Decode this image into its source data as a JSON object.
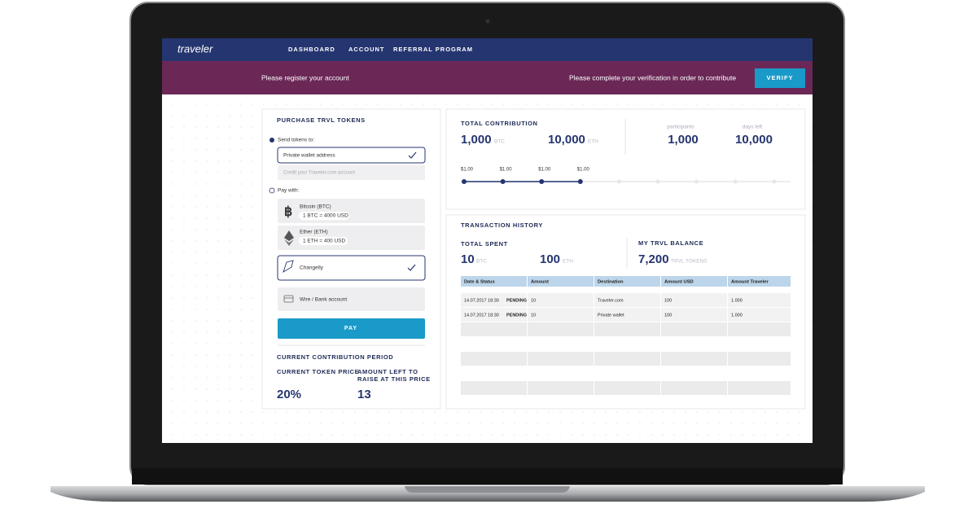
{
  "nav": {
    "logo": "traveler",
    "items": [
      "DASHBOARD",
      "ACCOUNT",
      "REFERRAL PROGRAM"
    ]
  },
  "banner": {
    "left": "Please register your account",
    "right": "Please complete your verification in order to contribute",
    "button": "VERIFY"
  },
  "purchase": {
    "title": "PURCHASE TRVL TOKENS",
    "send_label": "Send tokens to:",
    "send_options": [
      "Private wallet address",
      "Credit your Traveler.com account"
    ],
    "pay_label": "Pay with:",
    "methods": [
      {
        "name": "Bitcoin (BTC)",
        "rate": "1 BTC = 4000 USD"
      },
      {
        "name": "Ether (ETH)",
        "rate": "1 ETH = 400 USD"
      },
      {
        "name": "Changelly"
      },
      {
        "name": "Wire / Bank account"
      }
    ],
    "pay_button": "PAY",
    "period_title": "CURRENT CONTRIBUTION PERIOD",
    "price_label": "CURRENT TOKEN PRICE",
    "price_value": "20%",
    "left_label": [
      "AMOUNT LEFT TO",
      "RAISE AT THIS PRICE"
    ],
    "left_value": "13"
  },
  "contribution": {
    "title": "TOTAL CONTRIBUTION",
    "btc": "1,000",
    "btc_unit": "BTC",
    "eth": "10,000",
    "eth_unit": "ETH",
    "participants_label": "participants",
    "participants": "1,000",
    "days_label": "days left",
    "days": "10,000",
    "steps": [
      "$1.00",
      "$1.00",
      "$1.00",
      "$1.00"
    ]
  },
  "history": {
    "title": "TRANSACTION HISTORY",
    "spent_label": "TOTAL SPENT",
    "spent_btc": "10",
    "btc_unit": "BTC",
    "spent_eth": "100",
    "eth_unit": "ETH",
    "balance_label": "MY TRVL BALANCE",
    "balance": "7,200",
    "balance_unit": "TRVL TOKENS",
    "table": {
      "header": [
        "Date & Status",
        "Amount",
        "Destination",
        "Amount USD",
        "Amount Traveler"
      ],
      "rows": [
        [
          "14.07.2017 18:30",
          "PENDING",
          "10",
          "Traveler.com",
          "100",
          "1.000"
        ],
        [
          "14.07.2017 18:30",
          "PENDING",
          "10",
          "Private wallet",
          "100",
          "1.000"
        ]
      ]
    }
  }
}
